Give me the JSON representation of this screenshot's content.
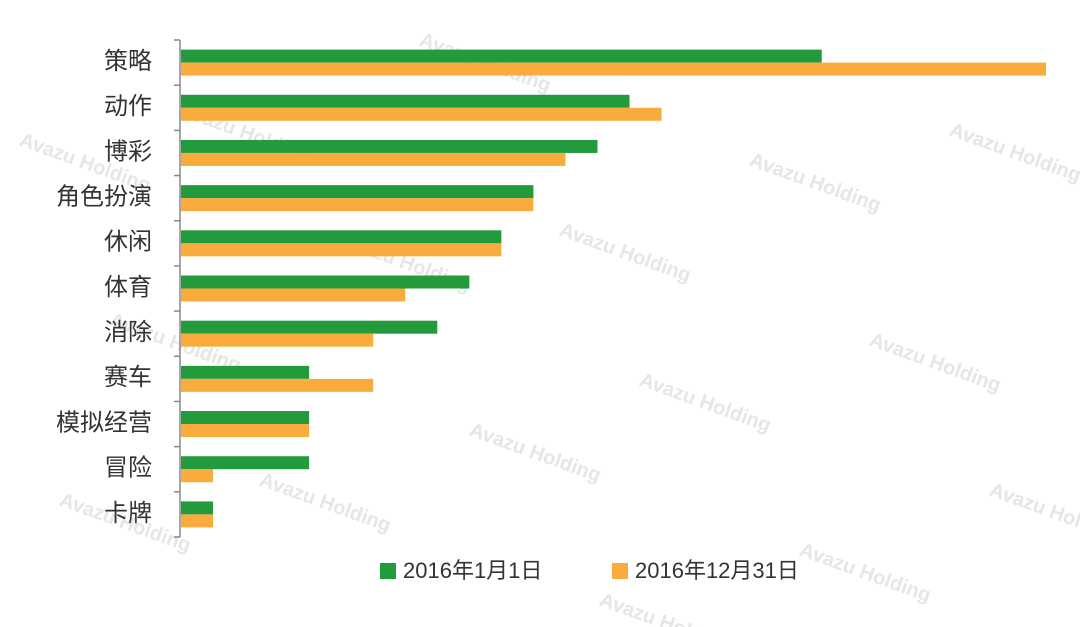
{
  "chart_data": {
    "type": "bar",
    "orientation": "horizontal",
    "categories": [
      "策略",
      "动作",
      "博彩",
      "角色扮演",
      "休闲",
      "体育",
      "消除",
      "赛车",
      "模拟经营",
      "冒险",
      "卡牌"
    ],
    "series": [
      {
        "name": "2016年1月1日",
        "color": "#239b3d",
        "values": [
          20,
          14,
          13,
          11,
          10,
          9,
          8,
          4,
          4,
          4,
          1
        ]
      },
      {
        "name": "2016年12月31日",
        "color": "#f9ab3e",
        "values": [
          27,
          15,
          12,
          11,
          10,
          7,
          6,
          6,
          4,
          1,
          1
        ]
      }
    ],
    "watermark": "Avazu Holding"
  }
}
